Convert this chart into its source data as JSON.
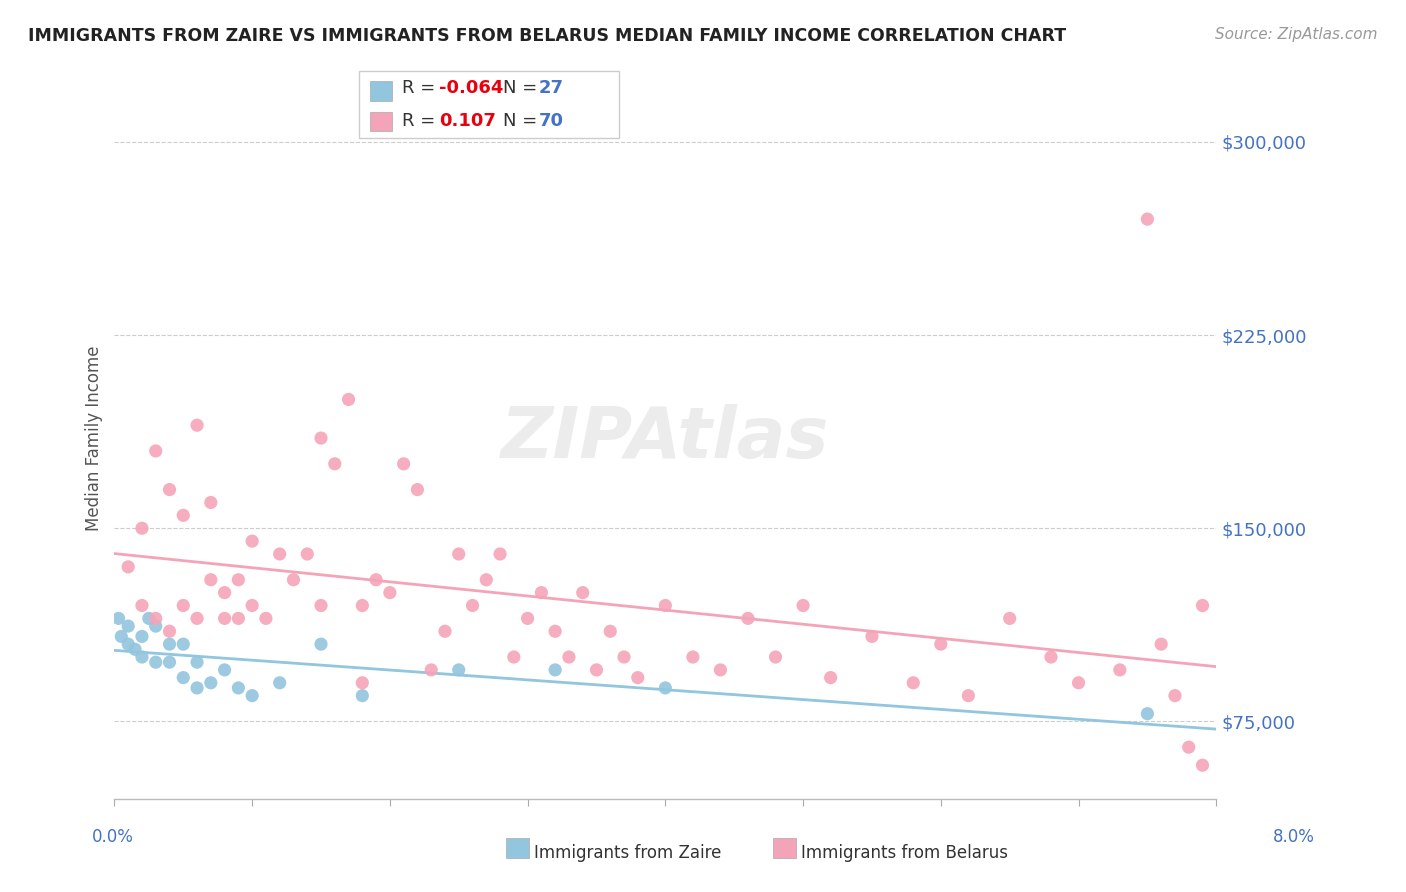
{
  "title": "IMMIGRANTS FROM ZAIRE VS IMMIGRANTS FROM BELARUS MEDIAN FAMILY INCOME CORRELATION CHART",
  "source": "Source: ZipAtlas.com",
  "ylabel": "Median Family Income",
  "yticks": [
    75000,
    150000,
    225000,
    300000
  ],
  "ytick_labels": [
    "$75,000",
    "$150,000",
    "$225,000",
    "$300,000"
  ],
  "xmin": 0.0,
  "xmax": 0.08,
  "ymin": 45000,
  "ymax": 325000,
  "zaire_r": "-0.064",
  "zaire_n": "27",
  "belarus_r": "0.107",
  "belarus_n": "70",
  "color_zaire": "#92c5de",
  "color_belarus": "#f4a4b8",
  "color_title": "#222222",
  "color_source": "#999999",
  "color_ytick": "#4472c4",
  "color_r_val": "#e8000e",
  "color_n_val": "#4472c4",
  "color_grid": "#cccccc",
  "zaire_x": [
    0.0003,
    0.0005,
    0.001,
    0.001,
    0.0015,
    0.002,
    0.002,
    0.0025,
    0.003,
    0.003,
    0.004,
    0.004,
    0.005,
    0.005,
    0.006,
    0.006,
    0.007,
    0.008,
    0.009,
    0.01,
    0.012,
    0.015,
    0.018,
    0.025,
    0.032,
    0.04,
    0.075
  ],
  "zaire_y": [
    115000,
    108000,
    112000,
    105000,
    103000,
    108000,
    100000,
    115000,
    112000,
    98000,
    105000,
    98000,
    105000,
    92000,
    98000,
    88000,
    90000,
    95000,
    88000,
    85000,
    90000,
    105000,
    85000,
    95000,
    95000,
    88000,
    78000
  ],
  "belarus_x": [
    0.001,
    0.002,
    0.002,
    0.003,
    0.003,
    0.004,
    0.004,
    0.005,
    0.005,
    0.006,
    0.006,
    0.007,
    0.007,
    0.008,
    0.008,
    0.009,
    0.009,
    0.01,
    0.01,
    0.011,
    0.012,
    0.013,
    0.014,
    0.015,
    0.015,
    0.016,
    0.017,
    0.018,
    0.018,
    0.019,
    0.02,
    0.021,
    0.022,
    0.023,
    0.024,
    0.025,
    0.026,
    0.027,
    0.028,
    0.029,
    0.03,
    0.031,
    0.032,
    0.033,
    0.034,
    0.035,
    0.036,
    0.037,
    0.038,
    0.04,
    0.042,
    0.044,
    0.046,
    0.048,
    0.05,
    0.052,
    0.055,
    0.058,
    0.06,
    0.062,
    0.065,
    0.068,
    0.07,
    0.073,
    0.075,
    0.076,
    0.077,
    0.078,
    0.079,
    0.079
  ],
  "belarus_y": [
    135000,
    150000,
    120000,
    180000,
    115000,
    165000,
    110000,
    155000,
    120000,
    190000,
    115000,
    130000,
    160000,
    115000,
    125000,
    130000,
    115000,
    145000,
    120000,
    115000,
    140000,
    130000,
    140000,
    120000,
    185000,
    175000,
    200000,
    120000,
    90000,
    130000,
    125000,
    175000,
    165000,
    95000,
    110000,
    140000,
    120000,
    130000,
    140000,
    100000,
    115000,
    125000,
    110000,
    100000,
    125000,
    95000,
    110000,
    100000,
    92000,
    120000,
    100000,
    95000,
    115000,
    100000,
    120000,
    92000,
    108000,
    90000,
    105000,
    85000,
    115000,
    100000,
    90000,
    95000,
    270000,
    105000,
    85000,
    65000,
    58000,
    120000
  ]
}
